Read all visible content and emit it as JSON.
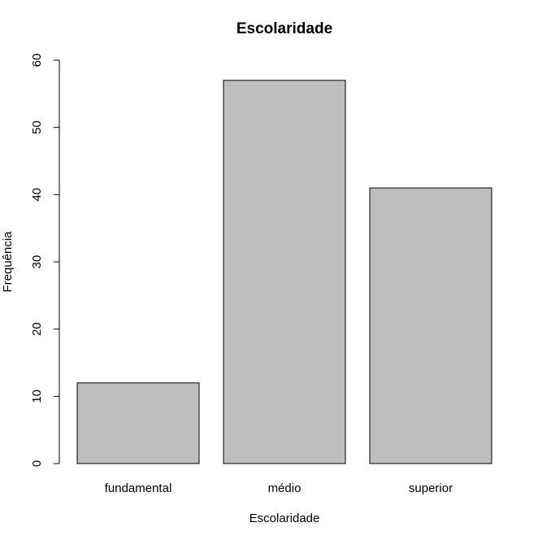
{
  "chart_data": {
    "type": "bar",
    "title": "Escolaridade",
    "xlabel": "Escolaridade",
    "ylabel": "Frequência",
    "categories": [
      "fundamental",
      "médio",
      "superior"
    ],
    "values": [
      12,
      57,
      41
    ],
    "ylim": [
      0,
      60
    ],
    "yticks": [
      "0",
      "10",
      "20",
      "30",
      "40",
      "50",
      "60"
    ],
    "grid": false,
    "legend": "none",
    "colors": {
      "bar_fill": "#bebebe",
      "bar_stroke": "#000000",
      "axis": "#000000",
      "background": "#ffffff"
    }
  }
}
